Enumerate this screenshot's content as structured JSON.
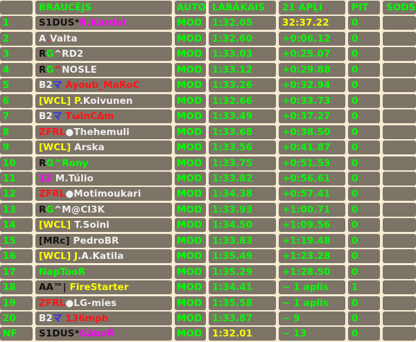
{
  "colors": {
    "cell_bg": "#7d7468",
    "separator": "#f6ecd4",
    "default_text": "#00ff00",
    "highlight": "#ffff00",
    "black": "#111111",
    "white": "#f0f0f0",
    "red": "#ff1414",
    "green": "#00ff00",
    "yellow": "#ffff00",
    "magenta": "#ff00ff",
    "blue": "#2a2aff"
  },
  "header": [
    "",
    "BRAUCĒJS",
    "AUTO",
    "LABĀKAIS",
    "21 APĻI",
    "PIT",
    "SODS"
  ],
  "rows": [
    {
      "pos": "1",
      "name": [
        [
          "S1DUS*",
          "black"
        ],
        [
          "R.Kardol",
          "magenta"
        ]
      ],
      "car": "MOD",
      "best": "1:32.05",
      "result": "32:37.22",
      "result_hl": true,
      "pit": "0",
      "penalty": ""
    },
    {
      "pos": "2",
      "name": [
        [
          "A",
          "white"
        ],
        [
          ".",
          "red"
        ],
        [
          "Valta",
          "white"
        ]
      ],
      "car": "MOD",
      "best": "1:32.60",
      "result": "+0:06.12",
      "pit": "0",
      "penalty": ""
    },
    {
      "pos": "3",
      "name": [
        [
          "R",
          "black"
        ],
        [
          "G",
          "green"
        ],
        [
          "^",
          "white"
        ],
        [
          "RD2",
          "white"
        ]
      ],
      "car": "MOD",
      "best": "1:33.03",
      "result": "+0:25.07",
      "pit": "0",
      "penalty": ""
    },
    {
      "pos": "4",
      "name": [
        [
          "R",
          "black"
        ],
        [
          "G",
          "green"
        ],
        [
          "^",
          "red"
        ],
        [
          "NOSLE",
          "white"
        ]
      ],
      "car": "MOD",
      "best": "1:33.12",
      "result": "+0:29.88",
      "pit": "0",
      "penalty": ""
    },
    {
      "pos": "5",
      "name": [
        [
          "B2",
          "white"
        ],
        [
          "マ",
          "blue"
        ],
        [
          " Ayoub_MaRoC",
          "red"
        ]
      ],
      "car": "MOD",
      "best": "1:33.26",
      "result": "+0:32.94",
      "pit": "0",
      "penalty": ""
    },
    {
      "pos": "6",
      "name": [
        [
          "[WCL] P",
          "yellow"
        ],
        [
          ".Koivunen",
          "white"
        ]
      ],
      "car": "MOD",
      "best": "1:32.66",
      "result": "+0:33.73",
      "pit": "0",
      "penalty": ""
    },
    {
      "pos": "7",
      "name": [
        [
          "B2",
          "white"
        ],
        [
          "マ",
          "blue"
        ],
        [
          " TωïnCΔm",
          "red"
        ]
      ],
      "car": "MOD",
      "best": "1:33.49",
      "result": "+0:37.27",
      "pit": "0",
      "penalty": ""
    },
    {
      "pos": "8",
      "name": [
        [
          "ZFRL",
          "red"
        ],
        [
          "●Thehemuli",
          "white"
        ]
      ],
      "car": "MOD",
      "best": "1:33.68",
      "result": "+0:38.50",
      "pit": "0",
      "penalty": ""
    },
    {
      "pos": "9",
      "name": [
        [
          "[WCL]",
          "yellow"
        ],
        [
          " Arska",
          "white"
        ]
      ],
      "car": "MOD",
      "best": "1:33.56",
      "result": "+0:41.87",
      "pit": "0",
      "penalty": ""
    },
    {
      "pos": "10",
      "name": [
        [
          "R",
          "black"
        ],
        [
          "G^Rony",
          "green"
        ]
      ],
      "car": "MOD",
      "best": "1:33.75",
      "result": "+0:51.53",
      "pit": "0",
      "penalty": ""
    },
    {
      "pos": "11",
      "name": [
        [
          "12",
          "magenta"
        ],
        [
          " M.Túlio",
          "white"
        ]
      ],
      "car": "MOD",
      "best": "1:33.82",
      "result": "+0:56.61",
      "pit": "0",
      "penalty": ""
    },
    {
      "pos": "12",
      "name": [
        [
          "ZFRL",
          "red"
        ],
        [
          "●Motimoukari",
          "white"
        ]
      ],
      "car": "MOD",
      "best": "1:34.38",
      "result": "+0:57.41",
      "pit": "0",
      "penalty": ""
    },
    {
      "pos": "13",
      "name": [
        [
          "R",
          "black"
        ],
        [
          "G",
          "green"
        ],
        [
          "^M@Cl3K",
          "white"
        ]
      ],
      "car": "MOD",
      "best": "1:33.93",
      "result": "+1:00.71",
      "pit": "0",
      "penalty": ""
    },
    {
      "pos": "14",
      "name": [
        [
          "[WCL]",
          "yellow"
        ],
        [
          " T.Soini",
          "white"
        ]
      ],
      "car": "MOD",
      "best": "1:34.50",
      "result": "+1:09.56",
      "pit": "0",
      "penalty": ""
    },
    {
      "pos": "15",
      "name": [
        [
          "[MRc]",
          "black"
        ],
        [
          " PedroBR",
          "white"
        ]
      ],
      "car": "MOD",
      "best": "1:33.83",
      "result": "+1:19.48",
      "pit": "0",
      "penalty": ""
    },
    {
      "pos": "16",
      "name": [
        [
          "[WCL] J",
          "yellow"
        ],
        [
          ".A.Katila",
          "white"
        ]
      ],
      "car": "MOD",
      "best": "1:35.49",
      "result": "+1:23.28",
      "pit": "0",
      "penalty": ""
    },
    {
      "pos": "17",
      "name": [
        [
          "NapTooR",
          "green"
        ]
      ],
      "car": "MOD",
      "best": "1:35.29",
      "result": "+1:28.50",
      "pit": "0",
      "penalty": ""
    },
    {
      "pos": "18",
      "name": [
        [
          "AA™|",
          "black"
        ],
        [
          " FireStarter",
          "yellow"
        ]
      ],
      "car": "MOD",
      "best": "1:34.41",
      "result": "− 1 aplis",
      "pit": "1",
      "penalty": ""
    },
    {
      "pos": "19",
      "name": [
        [
          "ZFRL",
          "red"
        ],
        [
          "●LG-mies",
          "white"
        ]
      ],
      "car": "MOD",
      "best": "1:35.58",
      "result": "− 1 aplis",
      "pit": "0",
      "penalty": ""
    },
    {
      "pos": "20",
      "name": [
        [
          "B2",
          "white"
        ],
        [
          "マ",
          "blue"
        ],
        [
          " 136mph",
          "red"
        ]
      ],
      "car": "MOD",
      "best": "1:33.87",
      "result": "− 9",
      "pit": "0",
      "penalty": ""
    },
    {
      "pos": "NF",
      "name": [
        [
          "S1DUS*",
          "black"
        ],
        [
          "GáboR",
          "magenta"
        ]
      ],
      "car": "MOD",
      "best": "1:32.01",
      "best_hl": true,
      "result": "− 13",
      "pit": "0",
      "penalty": ""
    }
  ]
}
